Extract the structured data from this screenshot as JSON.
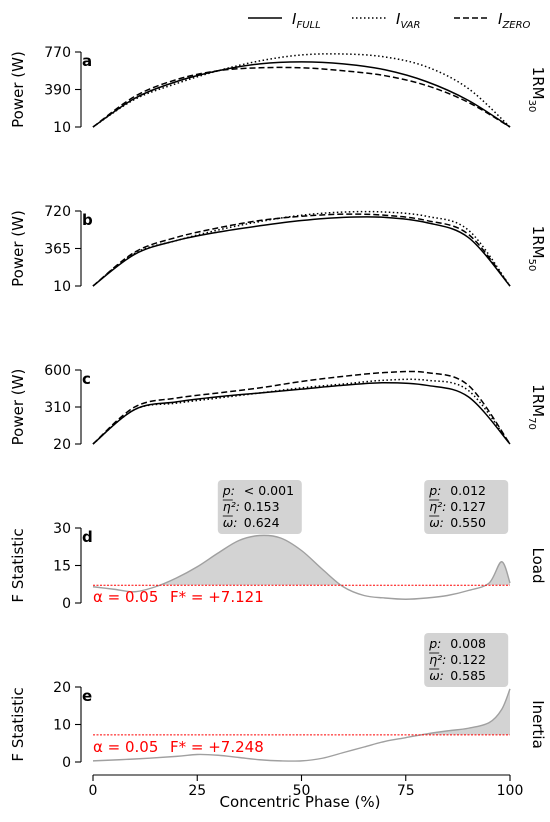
{
  "legend": [
    {
      "name": "I_FULL",
      "main": "I",
      "sub": "FULL",
      "dash": "solid"
    },
    {
      "name": "I_VAR",
      "main": "I",
      "sub": "VAR",
      "dash": "dotted"
    },
    {
      "name": "I_ZERO",
      "main": "I",
      "sub": "ZERO",
      "dash": "dashed"
    }
  ],
  "xaxis": {
    "label": "Concentric Phase (%)",
    "ticks": [
      0,
      25,
      50,
      75,
      100
    ],
    "range": [
      0,
      100
    ]
  },
  "chart_data": [
    {
      "type": "line",
      "panel": "a",
      "condition": "1RM",
      "condition_sub": "30",
      "ylabel": "Power (W)",
      "ylim": [
        10,
        770
      ],
      "yticks": [
        10,
        390,
        770
      ],
      "x": [
        0,
        10,
        20,
        30,
        40,
        50,
        60,
        70,
        80,
        90,
        100
      ],
      "series": [
        {
          "name": "I_FULL",
          "dash": "solid",
          "values": [
            10,
            300,
            470,
            580,
            650,
            670,
            650,
            590,
            470,
            280,
            10
          ]
        },
        {
          "name": "I_VAR",
          "dash": "dotted",
          "values": [
            10,
            290,
            450,
            580,
            680,
            740,
            750,
            720,
            620,
            400,
            10
          ]
        },
        {
          "name": "I_ZERO",
          "dash": "dashed",
          "values": [
            10,
            320,
            490,
            580,
            610,
            610,
            580,
            530,
            430,
            260,
            10
          ]
        }
      ]
    },
    {
      "type": "line",
      "panel": "b",
      "condition": "1RM",
      "condition_sub": "50",
      "ylabel": "Power (W)",
      "ylim": [
        10,
        720
      ],
      "yticks": [
        10,
        365,
        720
      ],
      "x": [
        0,
        10,
        20,
        30,
        40,
        50,
        60,
        70,
        80,
        90,
        100
      ],
      "series": [
        {
          "name": "I_FULL",
          "dash": "solid",
          "values": [
            10,
            310,
            440,
            520,
            580,
            630,
            660,
            660,
            610,
            470,
            10
          ]
        },
        {
          "name": "I_VAR",
          "dash": "dotted",
          "values": [
            10,
            320,
            440,
            540,
            620,
            680,
            710,
            710,
            670,
            540,
            10
          ]
        },
        {
          "name": "I_ZERO",
          "dash": "dashed",
          "values": [
            10,
            330,
            470,
            560,
            630,
            670,
            690,
            680,
            630,
            500,
            10
          ]
        }
      ]
    },
    {
      "type": "line",
      "panel": "c",
      "condition": "1RM",
      "condition_sub": "70",
      "ylabel": "Power (W)",
      "ylim": [
        20,
        600
      ],
      "yticks": [
        20,
        310,
        600
      ],
      "x": [
        0,
        10,
        20,
        30,
        40,
        50,
        60,
        70,
        80,
        90,
        100
      ],
      "series": [
        {
          "name": "I_FULL",
          "dash": "solid",
          "values": [
            20,
            290,
            350,
            390,
            420,
            450,
            480,
            500,
            480,
            390,
            20
          ]
        },
        {
          "name": "I_VAR",
          "dash": "dotted",
          "values": [
            20,
            290,
            340,
            380,
            420,
            460,
            490,
            520,
            520,
            440,
            20
          ]
        },
        {
          "name": "I_ZERO",
          "dash": "dashed",
          "values": [
            20,
            310,
            380,
            420,
            460,
            510,
            550,
            580,
            580,
            480,
            20
          ]
        }
      ]
    },
    {
      "type": "area",
      "panel": "d",
      "condition": "Load",
      "ylabel": "F Statistic",
      "ylim": [
        0,
        30
      ],
      "yticks": [
        0,
        15,
        30
      ],
      "x": [
        0,
        5,
        10,
        15,
        20,
        25,
        30,
        35,
        40,
        45,
        50,
        55,
        60,
        65,
        70,
        75,
        80,
        85,
        90,
        95,
        98,
        100
      ],
      "values": [
        6.5,
        5.5,
        4.5,
        6.5,
        10,
        14.5,
        20,
        25,
        27,
        26,
        21,
        13.5,
        6.5,
        3,
        2,
        1.5,
        2,
        3,
        5,
        8,
        16.5,
        8
      ],
      "threshold": 7.121,
      "alpha_text": "α = 0.05",
      "fstar_text": "F* = +7.121",
      "clusters": [
        {
          "p": "< 0.001",
          "eta2": "0.153",
          "omega": "0.624"
        },
        {
          "p": "0.012",
          "eta2": "0.127",
          "omega": "0.550"
        }
      ]
    },
    {
      "type": "area",
      "panel": "e",
      "condition": "Inertia",
      "ylabel": "F Statistic",
      "ylim": [
        0,
        20
      ],
      "yticks": [
        0,
        10,
        20
      ],
      "x": [
        0,
        10,
        20,
        25,
        30,
        35,
        40,
        45,
        50,
        55,
        60,
        65,
        70,
        75,
        80,
        85,
        90,
        95,
        98,
        100
      ],
      "values": [
        0.3,
        0.8,
        1.5,
        2,
        1.8,
        1.2,
        0.6,
        0.3,
        0.3,
        1,
        2.5,
        4,
        5.5,
        6.5,
        7.5,
        8.3,
        9,
        10.5,
        14,
        19.5
      ],
      "threshold": 7.248,
      "alpha_text": "α = 0.05",
      "fstar_text": "F* = +7.248",
      "clusters": [
        {
          "p": "0.008",
          "eta2": "0.122",
          "omega": "0.585"
        }
      ]
    }
  ]
}
